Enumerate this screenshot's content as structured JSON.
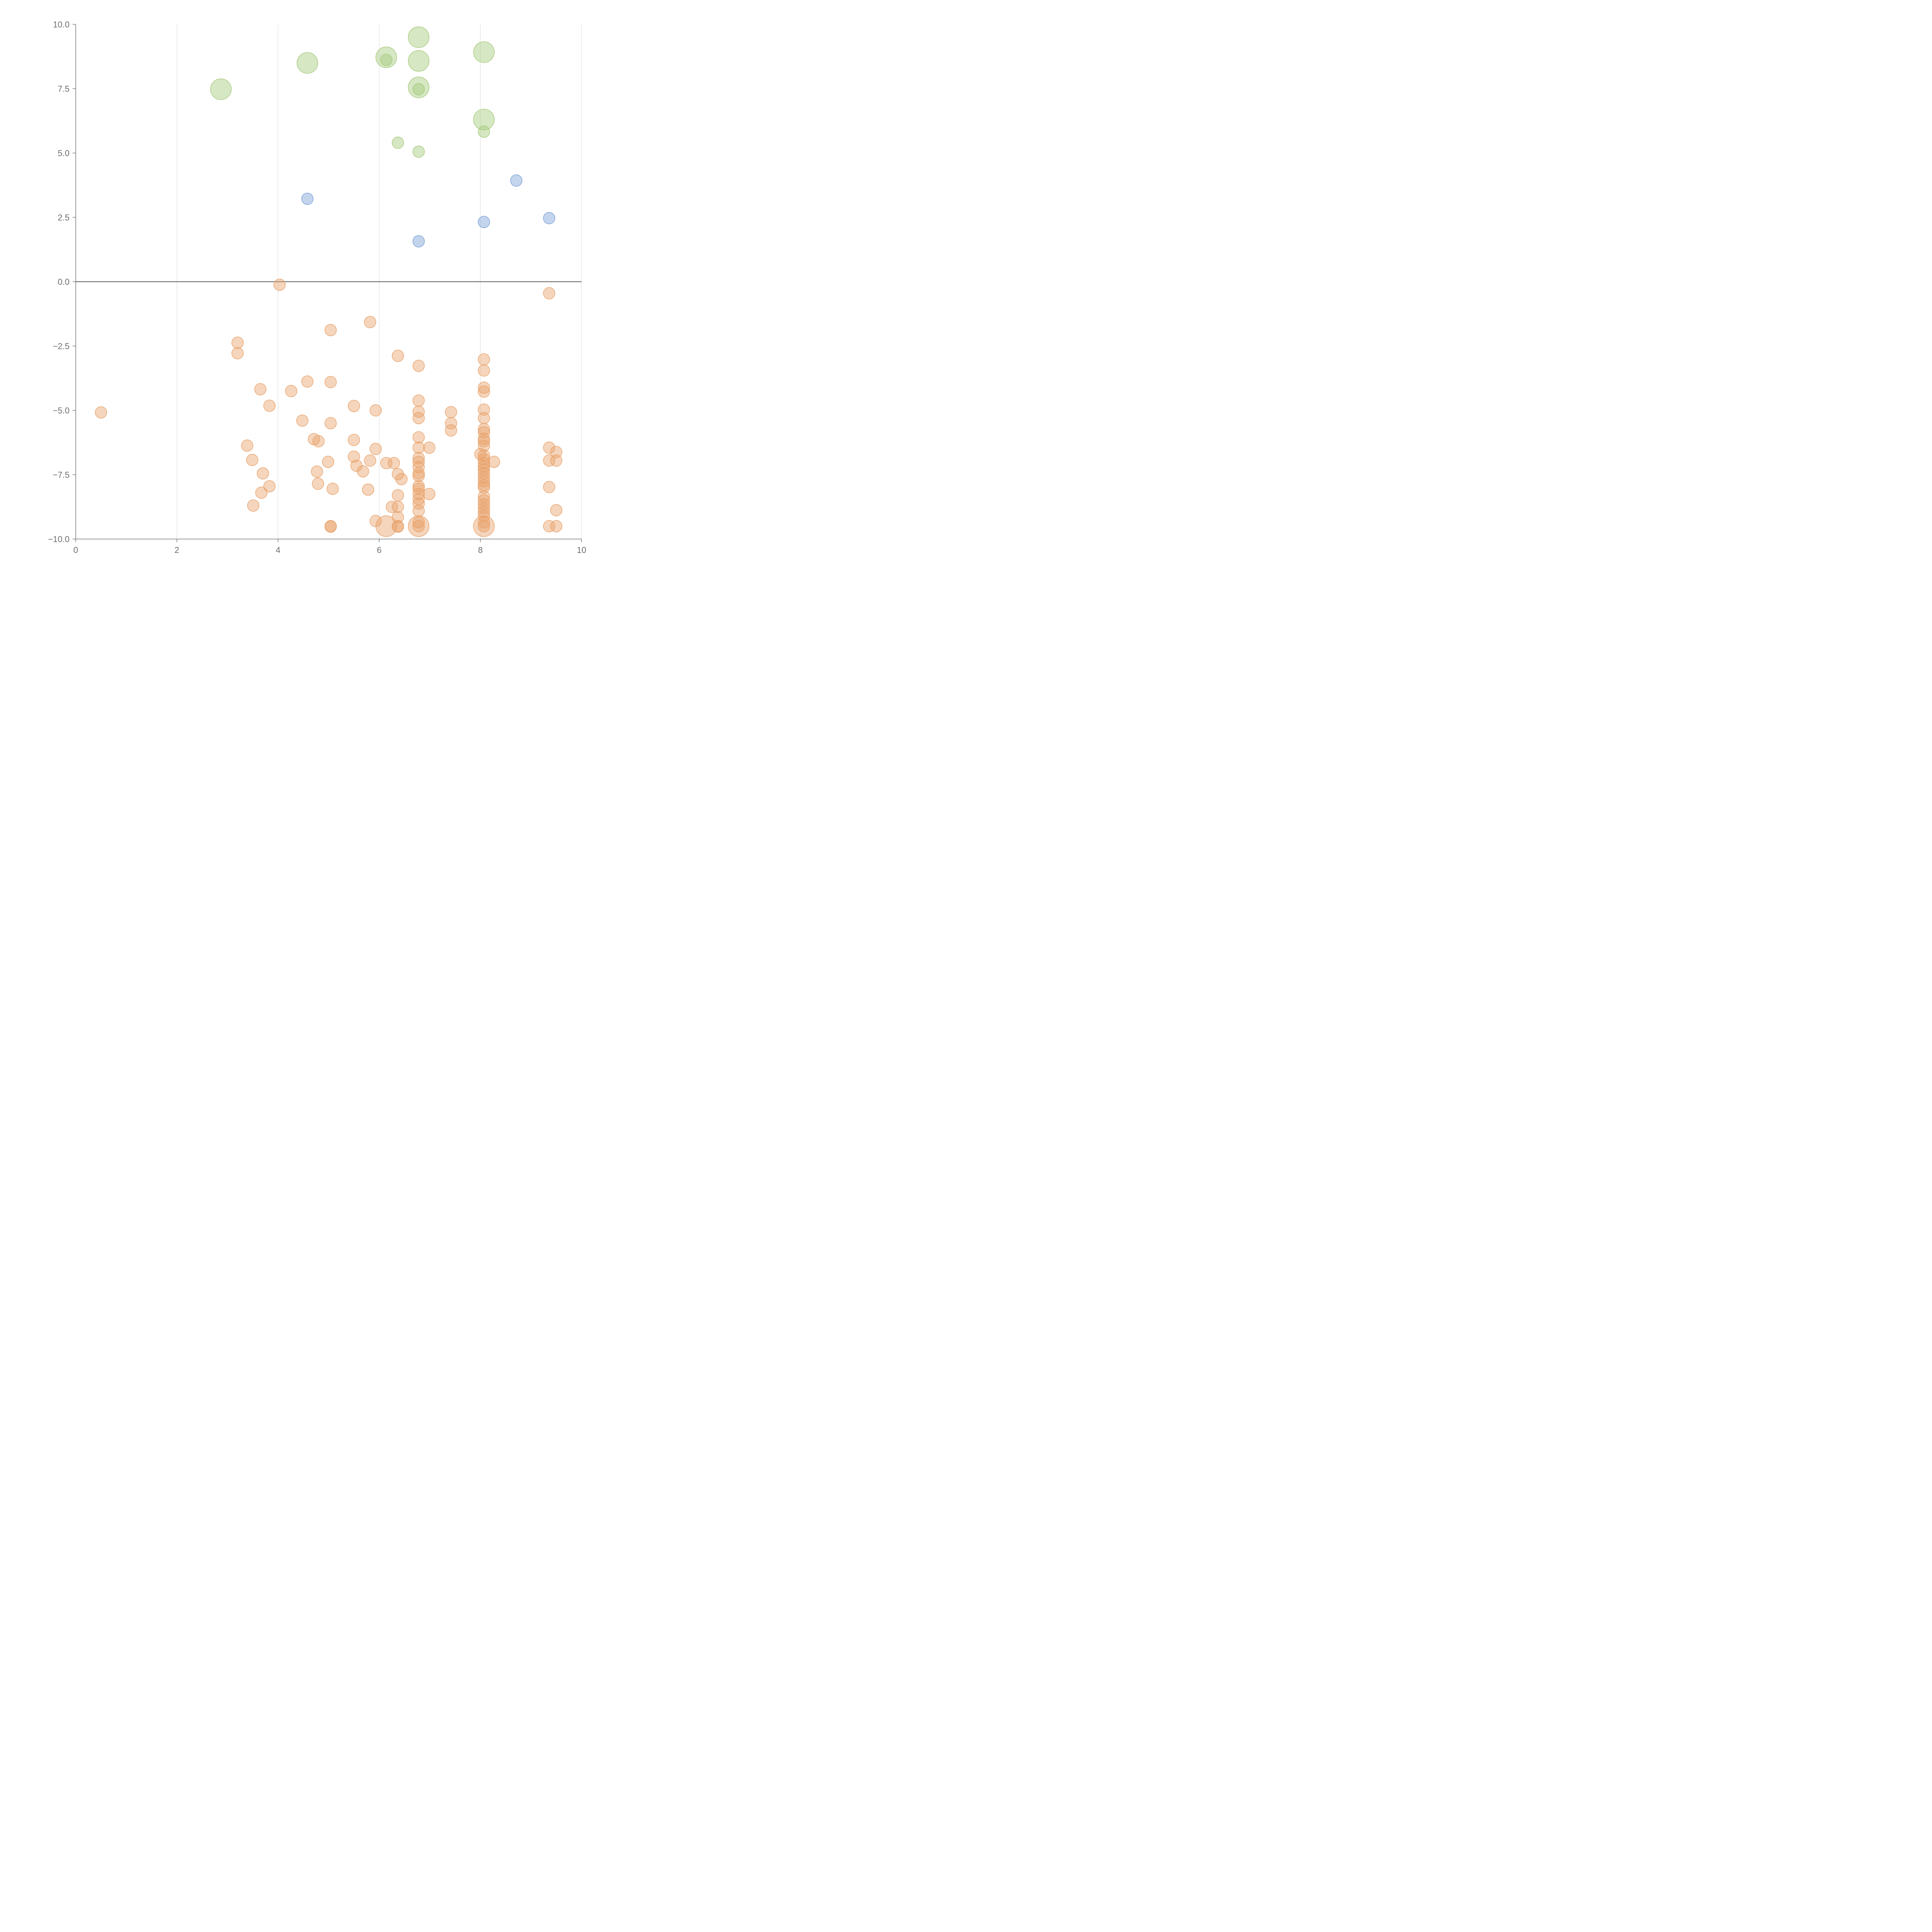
{
  "chart_data": {
    "type": "scatter",
    "title": "",
    "xlabel": "",
    "ylabel": "",
    "xlim": [
      0,
      10
    ],
    "ylim": [
      -10,
      10
    ],
    "x_ticks": [
      0,
      2,
      4,
      6,
      8,
      10
    ],
    "y_ticks": [
      -10,
      -7.5,
      -5,
      -2.5,
      0,
      2.5,
      5,
      7.5,
      10
    ],
    "x_tick_labels": [
      "0",
      "2",
      "4",
      "6",
      "8",
      "10"
    ],
    "y_tick_labels": [
      "−10.0",
      "−7.5",
      "−5.0",
      "−2.5",
      "0.0",
      "2.5",
      "5.0",
      "7.5",
      "10.0"
    ],
    "grid": "vertical",
    "zero_line": true,
    "legend": "none",
    "colors": {
      "green": "#a5c97a",
      "blue": "#7a9fd6",
      "orange": "#e8a26a"
    },
    "series": [
      {
        "color": "green",
        "points": [
          [
            2.87,
            7.48,
            "lg"
          ],
          [
            4.58,
            8.5,
            "lg"
          ],
          [
            6.14,
            8.72,
            "lg"
          ],
          [
            6.14,
            8.62,
            "sm"
          ],
          [
            6.78,
            9.5,
            "lg"
          ],
          [
            6.78,
            8.58,
            "lg"
          ],
          [
            6.78,
            7.55,
            "lg"
          ],
          [
            6.78,
            7.48,
            "sm"
          ],
          [
            8.07,
            8.92,
            "lg"
          ],
          [
            8.07,
            6.3,
            "lg"
          ],
          [
            8.07,
            5.83,
            "sm"
          ],
          [
            6.37,
            5.4,
            "sm"
          ],
          [
            6.78,
            5.05,
            "sm"
          ]
        ]
      },
      {
        "color": "blue",
        "points": [
          [
            4.58,
            3.22,
            "sm"
          ],
          [
            8.71,
            3.93,
            "sm"
          ],
          [
            8.07,
            2.32,
            "sm"
          ],
          [
            9.36,
            2.47,
            "sm"
          ],
          [
            6.78,
            1.57,
            "sm"
          ]
        ]
      },
      {
        "color": "orange",
        "points": [
          [
            4.03,
            -0.12,
            "sm"
          ],
          [
            9.36,
            -0.45,
            "sm"
          ],
          [
            5.82,
            -1.57,
            "sm"
          ],
          [
            5.04,
            -1.88,
            "sm"
          ],
          [
            3.2,
            -2.37,
            "sm"
          ],
          [
            3.2,
            -2.78,
            "sm"
          ],
          [
            6.37,
            -2.88,
            "sm"
          ],
          [
            6.78,
            -3.27,
            "sm"
          ],
          [
            8.07,
            -3.02,
            "sm"
          ],
          [
            8.07,
            -3.45,
            "sm"
          ],
          [
            4.58,
            -3.88,
            "sm"
          ],
          [
            5.04,
            -3.9,
            "sm"
          ],
          [
            3.65,
            -4.18,
            "sm"
          ],
          [
            4.26,
            -4.25,
            "sm"
          ],
          [
            8.07,
            -4.12,
            "sm"
          ],
          [
            8.07,
            -4.27,
            "sm"
          ],
          [
            6.78,
            -4.62,
            "sm"
          ],
          [
            3.83,
            -4.82,
            "sm"
          ],
          [
            5.5,
            -4.83,
            "sm"
          ],
          [
            5.93,
            -5.0,
            "sm"
          ],
          [
            6.78,
            -5.05,
            "sm"
          ],
          [
            6.78,
            -5.3,
            "sm"
          ],
          [
            7.42,
            -5.07,
            "sm"
          ],
          [
            7.42,
            -5.5,
            "sm"
          ],
          [
            7.42,
            -5.78,
            "sm"
          ],
          [
            8.07,
            -4.97,
            "sm"
          ],
          [
            8.07,
            -5.3,
            "sm"
          ],
          [
            0.5,
            -5.08,
            "sm"
          ],
          [
            4.48,
            -5.4,
            "sm"
          ],
          [
            5.04,
            -5.5,
            "sm"
          ],
          [
            8.07,
            -5.73,
            "sm"
          ],
          [
            8.07,
            -5.85,
            "sm"
          ],
          [
            8.07,
            -6.1,
            "sm"
          ],
          [
            8.07,
            -6.2,
            "sm"
          ],
          [
            8.07,
            -6.38,
            "sm"
          ],
          [
            4.71,
            -6.12,
            "sm"
          ],
          [
            4.8,
            -6.2,
            "sm"
          ],
          [
            5.5,
            -6.15,
            "sm"
          ],
          [
            6.78,
            -6.05,
            "sm"
          ],
          [
            3.39,
            -6.37,
            "sm"
          ],
          [
            5.93,
            -6.5,
            "sm"
          ],
          [
            6.78,
            -6.45,
            "sm"
          ],
          [
            6.99,
            -6.45,
            "sm"
          ],
          [
            9.36,
            -6.45,
            "sm"
          ],
          [
            9.5,
            -6.62,
            "sm"
          ],
          [
            8.0,
            -6.7,
            "sm"
          ],
          [
            8.07,
            -6.75,
            "sm"
          ],
          [
            8.07,
            -6.9,
            "sm"
          ],
          [
            8.07,
            -7.05,
            "sm"
          ],
          [
            8.07,
            -7.18,
            "sm"
          ],
          [
            8.07,
            -7.3,
            "sm"
          ],
          [
            8.07,
            -7.45,
            "sm"
          ],
          [
            8.07,
            -7.6,
            "sm"
          ],
          [
            8.07,
            -7.75,
            "sm"
          ],
          [
            8.07,
            -7.9,
            "sm"
          ],
          [
            8.07,
            -8.0,
            "sm"
          ],
          [
            8.27,
            -7.0,
            "sm"
          ],
          [
            3.49,
            -6.93,
            "sm"
          ],
          [
            5.5,
            -6.8,
            "sm"
          ],
          [
            5.82,
            -6.95,
            "sm"
          ],
          [
            6.14,
            -7.05,
            "sm"
          ],
          [
            6.29,
            -7.05,
            "sm"
          ],
          [
            6.78,
            -6.85,
            "sm"
          ],
          [
            6.78,
            -7.0,
            "sm"
          ],
          [
            6.78,
            -7.2,
            "sm"
          ],
          [
            6.78,
            -7.45,
            "sm"
          ],
          [
            6.78,
            -7.55,
            "sm"
          ],
          [
            4.99,
            -7.0,
            "sm"
          ],
          [
            5.55,
            -7.15,
            "sm"
          ],
          [
            5.68,
            -7.37,
            "sm"
          ],
          [
            9.36,
            -6.95,
            "sm"
          ],
          [
            9.5,
            -6.95,
            "sm"
          ],
          [
            3.7,
            -7.45,
            "sm"
          ],
          [
            4.77,
            -7.38,
            "sm"
          ],
          [
            6.37,
            -7.48,
            "sm"
          ],
          [
            6.44,
            -7.67,
            "sm"
          ],
          [
            3.83,
            -7.95,
            "sm"
          ],
          [
            3.67,
            -8.2,
            "sm"
          ],
          [
            4.79,
            -7.85,
            "sm"
          ],
          [
            5.08,
            -8.05,
            "sm"
          ],
          [
            5.78,
            -8.08,
            "sm"
          ],
          [
            6.78,
            -7.95,
            "sm"
          ],
          [
            6.78,
            -8.05,
            "sm"
          ],
          [
            6.78,
            -8.25,
            "sm"
          ],
          [
            6.78,
            -8.45,
            "sm"
          ],
          [
            6.78,
            -8.62,
            "sm"
          ],
          [
            6.99,
            -8.25,
            "sm"
          ],
          [
            6.37,
            -8.3,
            "sm"
          ],
          [
            9.36,
            -7.98,
            "sm"
          ],
          [
            8.07,
            -8.35,
            "sm"
          ],
          [
            8.07,
            -8.5,
            "sm"
          ],
          [
            8.07,
            -8.65,
            "sm"
          ],
          [
            8.07,
            -8.8,
            "sm"
          ],
          [
            8.07,
            -8.95,
            "sm"
          ],
          [
            8.07,
            -9.1,
            "sm"
          ],
          [
            3.51,
            -8.7,
            "sm"
          ],
          [
            6.25,
            -8.75,
            "sm"
          ],
          [
            6.37,
            -8.75,
            "sm"
          ],
          [
            6.78,
            -8.9,
            "sm"
          ],
          [
            9.5,
            -8.88,
            "sm"
          ],
          [
            6.37,
            -9.15,
            "sm"
          ],
          [
            5.93,
            -9.3,
            "sm"
          ],
          [
            5.04,
            -9.5,
            "sm"
          ],
          [
            5.04,
            -9.52,
            "sm"
          ],
          [
            6.37,
            -9.5,
            "sm"
          ],
          [
            6.37,
            -9.52,
            "sm"
          ],
          [
            6.78,
            -9.35,
            "sm"
          ],
          [
            6.78,
            -9.5,
            "sm"
          ],
          [
            8.07,
            -9.35,
            "sm"
          ],
          [
            8.07,
            -9.5,
            "sm"
          ],
          [
            9.36,
            -9.5,
            "sm"
          ],
          [
            9.5,
            -9.5,
            "sm"
          ],
          [
            6.14,
            -9.5,
            "lg"
          ],
          [
            6.78,
            -9.5,
            "lg"
          ],
          [
            8.07,
            -9.5,
            "lg"
          ]
        ]
      }
    ]
  }
}
